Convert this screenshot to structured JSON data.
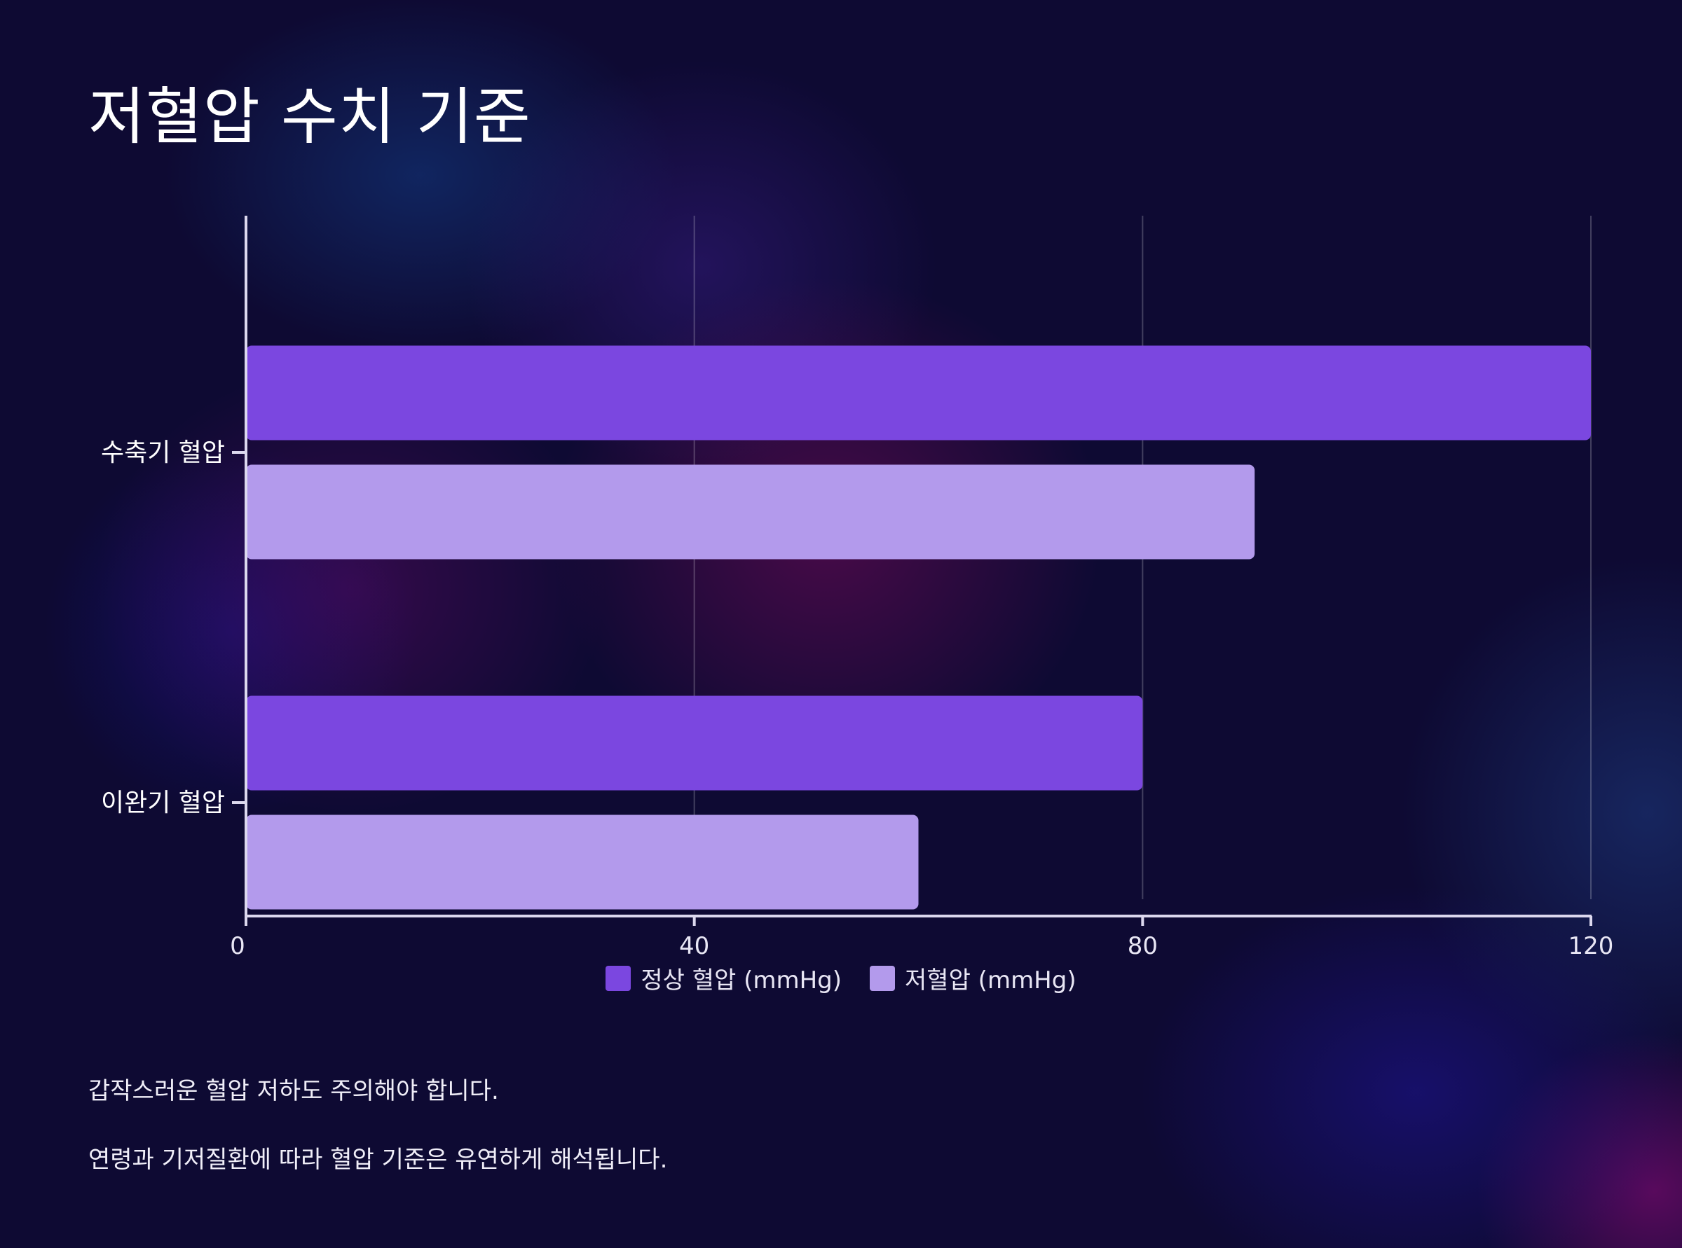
{
  "title": "저혈압 수치 기준",
  "chart_data": {
    "type": "bar",
    "orientation": "horizontal",
    "categories": [
      "수축기 혈압",
      "이완기 혈압"
    ],
    "series": [
      {
        "name": "정상 혈압 (mmHg)",
        "values": [
          120,
          80
        ],
        "color": "#7b47e0"
      },
      {
        "name": "저혈압 (mmHg)",
        "values": [
          90,
          60
        ],
        "color": "#b39aec"
      }
    ],
    "xlim": [
      0,
      120
    ],
    "xticks": [
      "0",
      "40",
      "80",
      "120"
    ],
    "xlabel": "",
    "ylabel": "",
    "grid": "vertical",
    "legend": "bottom-center"
  },
  "notes": [
    "갑작스러운 혈압 저하도 주의해야 합니다.",
    "연령과 기저질환에 따라 혈압 기준은 유연하게 해석됩니다."
  ]
}
